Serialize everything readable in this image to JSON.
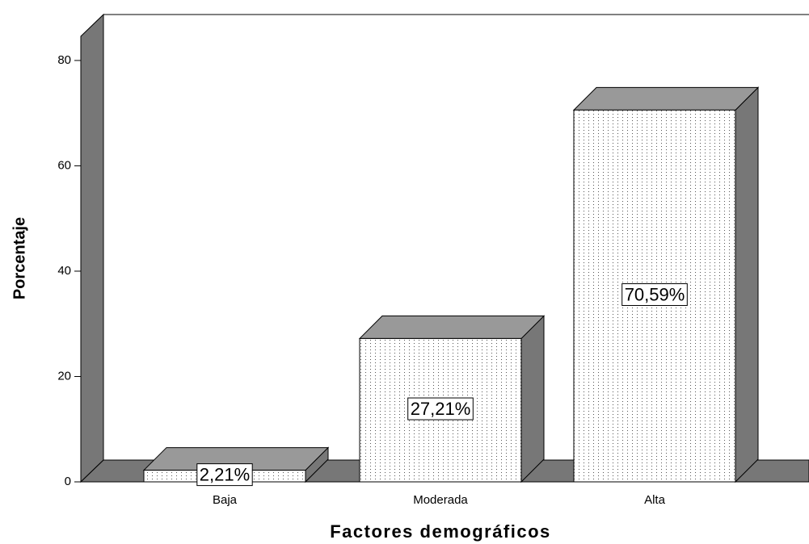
{
  "chart_data": {
    "type": "bar3d",
    "xlabel": "Factores demográficos",
    "ylabel": "Porcentaje",
    "categories": [
      "Baja",
      "Moderada",
      "Alta"
    ],
    "values": [
      2.21,
      27.21,
      70.59
    ],
    "value_labels": [
      "2,21%",
      "27,21%",
      "70,59%"
    ],
    "ylim": [
      0,
      85
    ],
    "yticks": [
      0,
      20,
      40,
      60,
      80
    ],
    "color": "#ffffff",
    "top_color": "#999999",
    "side_color": "#777777"
  }
}
